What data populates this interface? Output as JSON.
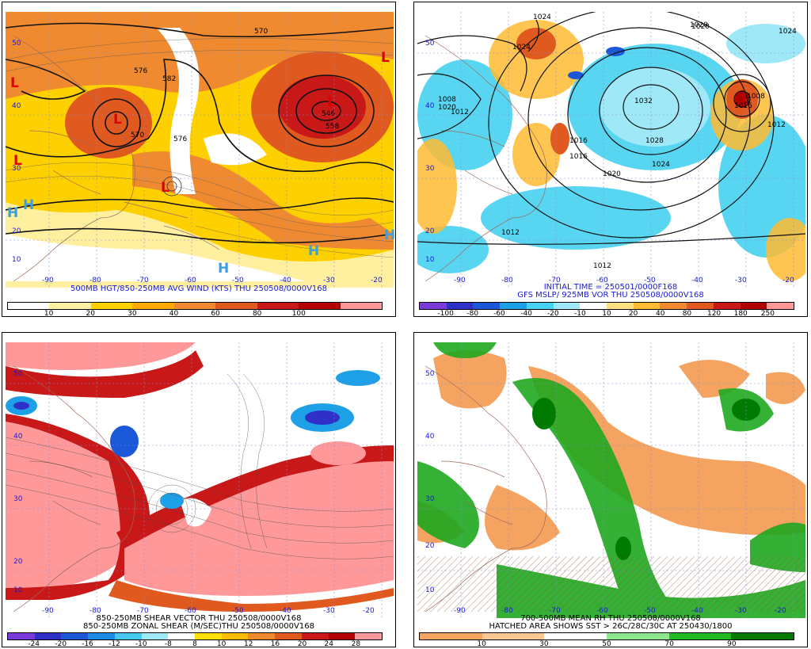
{
  "panels": [
    {
      "id": "p1",
      "caption": [
        "500MB HGT/850-250MB AVG WIND (KTS) THU 250508/0000V168"
      ],
      "caption_color": "blue",
      "colorbar": {
        "colors": [
          "#ffffff",
          "#fff0a0",
          "#ffd000",
          "#ffaa00",
          "#f08a30",
          "#e05a20",
          "#c81818",
          "#b40000",
          "#ff9999"
        ],
        "ticks": [
          "10",
          "20",
          "30",
          "40",
          "60",
          "80",
          "100"
        ]
      },
      "lat_labels": [
        "50",
        "40",
        "30",
        "20",
        "10"
      ],
      "lon_labels": [
        "-90",
        "-80",
        "-70",
        "-60",
        "-50",
        "-40",
        "-30",
        "-20"
      ],
      "contour_labels": [
        "570",
        "576",
        "582",
        "570",
        "576",
        "546",
        "558"
      ],
      "pressure_systems": [
        "L",
        "L",
        "L",
        "L",
        "L",
        "L",
        "H",
        "H",
        "H",
        "H",
        "H"
      ]
    },
    {
      "id": "p2",
      "caption": [
        "INITIAL TIME = 250501/0000F168",
        "GFS MSLP/ 925MB VOR THU 250508/0000V168"
      ],
      "caption_color": "blue",
      "colorbar": {
        "colors": [
          "#7a3ad8",
          "#3030c8",
          "#1a58d8",
          "#1ea0e6",
          "#46d2f0",
          "#9fe8f8",
          "#ffffff",
          "#ffe080",
          "#ffbb33",
          "#f08a30",
          "#e05a20",
          "#c81818",
          "#b00000",
          "#ff9999"
        ],
        "ticks": [
          "-100",
          "-80",
          "-60",
          "-40",
          "-20",
          "-10",
          "10",
          "20",
          "40",
          "80",
          "120",
          "180",
          "250"
        ]
      },
      "lat_labels": [
        "50",
        "40",
        "30",
        "20",
        "10"
      ],
      "lon_labels": [
        "-90",
        "-80",
        "-70",
        "-60",
        "-50",
        "-40",
        "-30",
        "-20"
      ],
      "contour_labels": [
        "1024",
        "1020",
        "1032",
        "1028",
        "1024",
        "1020",
        "1016",
        "1012",
        "1012",
        "1008",
        "1012",
        "1016",
        "1020",
        "1024",
        "1020",
        "1012",
        "1016",
        "1024",
        "1008"
      ]
    },
    {
      "id": "p3",
      "caption": [
        "850-250MB SHEAR VECTOR THU 250508/0000V168",
        "850-250MB ZONAL SHEAR (M/SEC)THU 250508/0000V168"
      ],
      "caption_color": "black",
      "colorbar": {
        "colors": [
          "#7a3ad8",
          "#3030c8",
          "#1a58d8",
          "#1e8ce6",
          "#46c8f0",
          "#9fe8f8",
          "#ffffff",
          "#ffe000",
          "#ffbb00",
          "#f08a30",
          "#e05a20",
          "#c81818",
          "#b00000",
          "#ff9999"
        ],
        "ticks": [
          "-24",
          "-20",
          "-16",
          "-12",
          "-10",
          "-8",
          "8",
          "10",
          "12",
          "16",
          "20",
          "24",
          "28"
        ]
      },
      "lat_labels": [
        "50",
        "40",
        "30",
        "20",
        "10"
      ],
      "lon_labels": [
        "-90",
        "-80",
        "-70",
        "-60",
        "-50",
        "-40",
        "-30",
        "-20"
      ]
    },
    {
      "id": "p4",
      "caption": [
        "700-500MB MEAN RH THU 250508/0000V168",
        "HATCHED AREA SHOWS SST > 26C/28C/30C AT 250430/1800"
      ],
      "caption_color": "black",
      "colorbar": {
        "colors": [
          "#f4a460",
          "#fac890",
          "#ffffff",
          "#8ce88c",
          "#22b822",
          "#007a00"
        ],
        "ticks": [
          "10",
          "30",
          "50",
          "70",
          "90"
        ]
      },
      "lat_labels": [
        "50",
        "40",
        "30",
        "20",
        "10"
      ],
      "lon_labels": [
        "-90",
        "-80",
        "-70",
        "-60",
        "-50",
        "-40",
        "-30",
        "-20"
      ]
    }
  ]
}
